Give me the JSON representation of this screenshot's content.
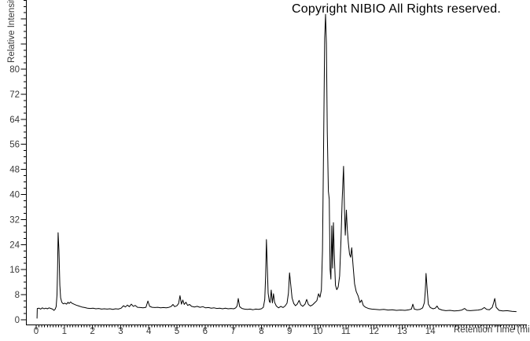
{
  "header": {
    "copyright": "Copyright NIBIO All Rights reserved."
  },
  "colors": {
    "background": "#ffffff",
    "trace": "#000000",
    "axis": "#000000",
    "tick_label": "#3a3a3a"
  },
  "chart_data": {
    "type": "line",
    "title": "",
    "xlabel": "Retention Time (min)",
    "ylabel": "Relative Intensity",
    "grid": false,
    "legend": false,
    "x_axis": {
      "min": 0,
      "max": 17.4,
      "major_step": 1,
      "minor_step": 0.1,
      "labeled_ticks": [
        0,
        1,
        2,
        3,
        4,
        5,
        6,
        7,
        8,
        9,
        10,
        11,
        12,
        13,
        14
      ]
    },
    "y_axis": {
      "min": 0,
      "max": 102,
      "major_step": 8,
      "minor_step": 2,
      "labeled_ticks": [
        0,
        8,
        16,
        24,
        32,
        40,
        48,
        56,
        64,
        72,
        80
      ]
    },
    "line_color": "#000000",
    "series": [
      {
        "name": "chromatogram-trace",
        "points": [
          [
            0.03,
            0.5
          ],
          [
            0.04,
            3.6
          ],
          [
            0.1,
            3.7
          ],
          [
            0.16,
            3.4
          ],
          [
            0.22,
            3.8
          ],
          [
            0.28,
            3.5
          ],
          [
            0.34,
            3.7
          ],
          [
            0.4,
            3.5
          ],
          [
            0.46,
            3.8
          ],
          [
            0.52,
            3.6
          ],
          [
            0.58,
            3.4
          ],
          [
            0.63,
            3.0
          ],
          [
            0.67,
            3.3
          ],
          [
            0.71,
            4.2
          ],
          [
            0.74,
            8.0
          ],
          [
            0.76,
            16.0
          ],
          [
            0.78,
            27.8
          ],
          [
            0.81,
            22.0
          ],
          [
            0.84,
            11.0
          ],
          [
            0.87,
            7.0
          ],
          [
            0.91,
            5.6
          ],
          [
            0.96,
            5.1
          ],
          [
            1.02,
            5.3
          ],
          [
            1.08,
            5.0
          ],
          [
            1.13,
            5.6
          ],
          [
            1.17,
            5.2
          ],
          [
            1.22,
            5.7
          ],
          [
            1.27,
            5.3
          ],
          [
            1.34,
            5.0
          ],
          [
            1.42,
            4.7
          ],
          [
            1.52,
            4.4
          ],
          [
            1.62,
            4.1
          ],
          [
            1.72,
            3.9
          ],
          [
            1.82,
            3.7
          ],
          [
            1.92,
            3.6
          ],
          [
            2.02,
            3.7
          ],
          [
            2.12,
            3.5
          ],
          [
            2.22,
            3.6
          ],
          [
            2.32,
            3.4
          ],
          [
            2.42,
            3.5
          ],
          [
            2.52,
            3.4
          ],
          [
            2.62,
            3.5
          ],
          [
            2.72,
            3.3
          ],
          [
            2.82,
            3.5
          ],
          [
            2.92,
            3.4
          ],
          [
            3.02,
            3.7
          ],
          [
            3.1,
            4.5
          ],
          [
            3.17,
            4.1
          ],
          [
            3.24,
            4.7
          ],
          [
            3.31,
            4.2
          ],
          [
            3.38,
            5.0
          ],
          [
            3.45,
            4.3
          ],
          [
            3.52,
            4.6
          ],
          [
            3.6,
            4.0
          ],
          [
            3.7,
            3.9
          ],
          [
            3.8,
            3.8
          ],
          [
            3.9,
            4.0
          ],
          [
            3.97,
            6.0
          ],
          [
            4.03,
            4.3
          ],
          [
            4.12,
            4.0
          ],
          [
            4.22,
            3.9
          ],
          [
            4.32,
            4.0
          ],
          [
            4.42,
            3.8
          ],
          [
            4.52,
            3.9
          ],
          [
            4.62,
            3.8
          ],
          [
            4.72,
            4.0
          ],
          [
            4.8,
            4.3
          ],
          [
            4.86,
            4.9
          ],
          [
            4.92,
            4.2
          ],
          [
            5.0,
            4.5
          ],
          [
            5.06,
            5.2
          ],
          [
            5.11,
            7.7
          ],
          [
            5.16,
            5.0
          ],
          [
            5.21,
            6.3
          ],
          [
            5.26,
            4.9
          ],
          [
            5.32,
            5.6
          ],
          [
            5.38,
            4.6
          ],
          [
            5.45,
            4.9
          ],
          [
            5.52,
            4.3
          ],
          [
            5.62,
            4.1
          ],
          [
            5.72,
            4.3
          ],
          [
            5.82,
            4.0
          ],
          [
            5.92,
            4.2
          ],
          [
            6.02,
            3.8
          ],
          [
            6.12,
            3.9
          ],
          [
            6.22,
            3.7
          ],
          [
            6.32,
            3.8
          ],
          [
            6.42,
            3.6
          ],
          [
            6.52,
            3.7
          ],
          [
            6.62,
            3.5
          ],
          [
            6.72,
            3.7
          ],
          [
            6.82,
            3.5
          ],
          [
            6.92,
            3.6
          ],
          [
            7.02,
            3.5
          ],
          [
            7.09,
            3.8
          ],
          [
            7.14,
            4.5
          ],
          [
            7.18,
            6.8
          ],
          [
            7.23,
            4.2
          ],
          [
            7.31,
            3.6
          ],
          [
            7.4,
            3.4
          ],
          [
            7.5,
            3.3
          ],
          [
            7.6,
            3.4
          ],
          [
            7.7,
            3.2
          ],
          [
            7.8,
            3.4
          ],
          [
            7.9,
            3.3
          ],
          [
            8.0,
            3.5
          ],
          [
            8.07,
            4.0
          ],
          [
            8.12,
            6.5
          ],
          [
            8.15,
            14.0
          ],
          [
            8.18,
            25.6
          ],
          [
            8.21,
            17.0
          ],
          [
            8.24,
            8.5
          ],
          [
            8.28,
            6.0
          ],
          [
            8.31,
            5.5
          ],
          [
            8.35,
            9.5
          ],
          [
            8.39,
            5.4
          ],
          [
            8.43,
            8.3
          ],
          [
            8.47,
            5.6
          ],
          [
            8.53,
            4.4
          ],
          [
            8.61,
            3.8
          ],
          [
            8.69,
            4.3
          ],
          [
            8.77,
            3.9
          ],
          [
            8.84,
            4.4
          ],
          [
            8.91,
            5.3
          ],
          [
            8.96,
            8.5
          ],
          [
            9.0,
            15.0
          ],
          [
            9.04,
            11.5
          ],
          [
            9.09,
            7.0
          ],
          [
            9.15,
            5.2
          ],
          [
            9.21,
            4.5
          ],
          [
            9.27,
            5.0
          ],
          [
            9.34,
            6.2
          ],
          [
            9.4,
            4.8
          ],
          [
            9.47,
            4.3
          ],
          [
            9.55,
            5.0
          ],
          [
            9.61,
            6.5
          ],
          [
            9.67,
            4.9
          ],
          [
            9.74,
            4.4
          ],
          [
            9.82,
            4.8
          ],
          [
            9.9,
            5.5
          ],
          [
            9.97,
            6.1
          ],
          [
            10.03,
            8.3
          ],
          [
            10.08,
            7.2
          ],
          [
            10.13,
            9.5
          ],
          [
            10.17,
            22.0
          ],
          [
            10.21,
            55.0
          ],
          [
            10.25,
            90.0
          ],
          [
            10.28,
            97.5
          ],
          [
            10.31,
            88.0
          ],
          [
            10.34,
            60.0
          ],
          [
            10.38,
            41.0
          ],
          [
            10.41,
            38.5
          ],
          [
            10.44,
            16.0
          ],
          [
            10.47,
            13.0
          ],
          [
            10.5,
            30.0
          ],
          [
            10.53,
            16.5
          ],
          [
            10.56,
            31.0
          ],
          [
            10.59,
            21.0
          ],
          [
            10.63,
            11.0
          ],
          [
            10.68,
            9.6
          ],
          [
            10.73,
            10.5
          ],
          [
            10.78,
            14.0
          ],
          [
            10.83,
            26.0
          ],
          [
            10.87,
            38.0
          ],
          [
            10.92,
            49.0
          ],
          [
            10.95,
            36.0
          ],
          [
            10.98,
            27.0
          ],
          [
            11.02,
            35.0
          ],
          [
            11.05,
            29.0
          ],
          [
            11.09,
            24.5
          ],
          [
            11.13,
            21.0
          ],
          [
            11.17,
            20.0
          ],
          [
            11.21,
            23.0
          ],
          [
            11.26,
            17.0
          ],
          [
            11.31,
            11.5
          ],
          [
            11.37,
            9.0
          ],
          [
            11.44,
            7.5
          ],
          [
            11.5,
            5.5
          ],
          [
            11.56,
            6.3
          ],
          [
            11.62,
            4.6
          ],
          [
            11.7,
            4.0
          ],
          [
            11.8,
            3.6
          ],
          [
            11.92,
            3.4
          ],
          [
            12.05,
            3.3
          ],
          [
            12.2,
            3.2
          ],
          [
            12.35,
            3.3
          ],
          [
            12.5,
            3.1
          ],
          [
            12.65,
            3.2
          ],
          [
            12.8,
            3.0
          ],
          [
            12.95,
            3.1
          ],
          [
            13.1,
            3.0
          ],
          [
            13.25,
            3.2
          ],
          [
            13.33,
            3.4
          ],
          [
            13.38,
            5.0
          ],
          [
            13.43,
            3.4
          ],
          [
            13.53,
            3.2
          ],
          [
            13.63,
            3.3
          ],
          [
            13.73,
            3.8
          ],
          [
            13.79,
            5.5
          ],
          [
            13.82,
            9.0
          ],
          [
            13.85,
            14.8
          ],
          [
            13.89,
            9.5
          ],
          [
            13.93,
            5.0
          ],
          [
            14.0,
            3.9
          ],
          [
            14.1,
            3.5
          ],
          [
            14.18,
            3.7
          ],
          [
            14.24,
            4.4
          ],
          [
            14.3,
            3.5
          ],
          [
            14.42,
            3.1
          ],
          [
            14.55,
            2.9
          ],
          [
            14.7,
            3.0
          ],
          [
            14.85,
            2.8
          ],
          [
            15.0,
            2.9
          ],
          [
            15.12,
            3.1
          ],
          [
            15.22,
            3.6
          ],
          [
            15.3,
            3.0
          ],
          [
            15.42,
            2.9
          ],
          [
            15.55,
            3.0
          ],
          [
            15.7,
            3.1
          ],
          [
            15.82,
            3.3
          ],
          [
            15.92,
            3.9
          ],
          [
            16.0,
            3.3
          ],
          [
            16.1,
            3.2
          ],
          [
            16.2,
            4.0
          ],
          [
            16.25,
            5.5
          ],
          [
            16.29,
            6.8
          ],
          [
            16.34,
            4.0
          ],
          [
            16.44,
            3.0
          ],
          [
            16.58,
            2.8
          ],
          [
            16.73,
            2.9
          ],
          [
            16.9,
            2.7
          ],
          [
            17.05,
            2.6
          ]
        ]
      }
    ]
  }
}
